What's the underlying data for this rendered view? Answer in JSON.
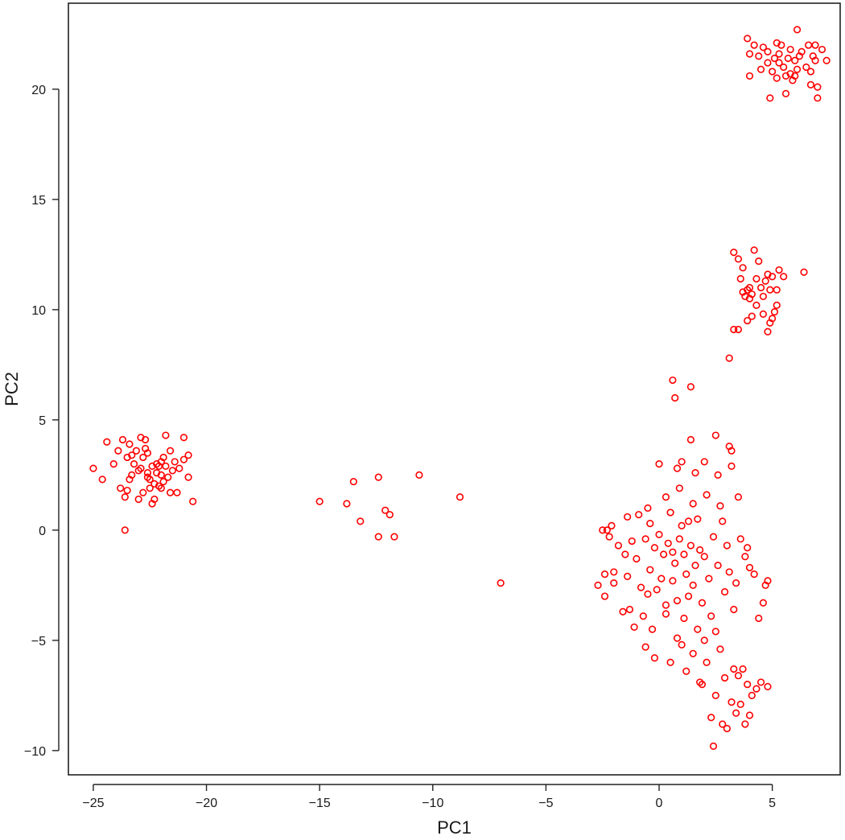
{
  "chart_data": {
    "type": "scatter",
    "title": "",
    "xlabel": "PC1",
    "ylabel": "PC2",
    "xlim": [
      -26.1,
      8.0
    ],
    "ylim": [
      -11.1,
      23.9
    ],
    "x_ticks": [
      -25,
      -20,
      -15,
      -10,
      -5,
      0,
      5
    ],
    "y_ticks": [
      -10,
      -5,
      0,
      5,
      10,
      15,
      20
    ],
    "x_tick_labels": [
      "−25",
      "−20",
      "−15",
      "−10",
      "−5",
      "0",
      "5"
    ],
    "y_tick_labels": [
      "−10",
      "−5",
      "0",
      "5",
      "10",
      "15",
      "20"
    ],
    "marker": "open-circle",
    "marker_color": "#ff0000",
    "grid": false,
    "legend": "none",
    "series": [
      {
        "points": [
          [
            -25.0,
            2.8
          ],
          [
            -24.6,
            2.3
          ],
          [
            -24.4,
            4.0
          ],
          [
            -24.1,
            3.0
          ],
          [
            -23.9,
            3.6
          ],
          [
            -23.8,
            1.9
          ],
          [
            -23.7,
            4.1
          ],
          [
            -23.6,
            1.5
          ],
          [
            -23.5,
            1.8
          ],
          [
            -23.5,
            3.3
          ],
          [
            -23.4,
            2.3
          ],
          [
            -23.4,
            3.9
          ],
          [
            -23.3,
            3.4
          ],
          [
            -23.2,
            3.0
          ],
          [
            -23.1,
            3.6
          ],
          [
            -23.0,
            1.4
          ],
          [
            -22.9,
            2.8
          ],
          [
            -22.9,
            4.2
          ],
          [
            -22.8,
            3.3
          ],
          [
            -22.8,
            1.7
          ],
          [
            -22.7,
            3.7
          ],
          [
            -22.7,
            4.1
          ],
          [
            -22.6,
            2.6
          ],
          [
            -22.6,
            3.5
          ],
          [
            -22.5,
            1.9
          ],
          [
            -22.5,
            2.3
          ],
          [
            -22.4,
            1.2
          ],
          [
            -22.4,
            2.9
          ],
          [
            -22.3,
            1.4
          ],
          [
            -22.3,
            2.1
          ],
          [
            -22.2,
            3.0
          ],
          [
            -22.2,
            2.6
          ],
          [
            -22.1,
            2.9
          ],
          [
            -22.0,
            2.5
          ],
          [
            -22.0,
            1.9
          ],
          [
            -21.9,
            3.3
          ],
          [
            -21.9,
            2.2
          ],
          [
            -21.8,
            2.9
          ],
          [
            -21.8,
            4.3
          ],
          [
            -21.7,
            2.4
          ],
          [
            -21.6,
            1.7
          ],
          [
            -21.6,
            3.6
          ],
          [
            -21.5,
            2.7
          ],
          [
            -21.4,
            3.1
          ],
          [
            -21.3,
            1.7
          ],
          [
            -21.2,
            2.8
          ],
          [
            -21.0,
            3.2
          ],
          [
            -21.0,
            4.2
          ],
          [
            -20.8,
            3.4
          ],
          [
            -20.8,
            2.4
          ],
          [
            -20.6,
            1.3
          ],
          [
            -23.6,
            0.0
          ],
          [
            -22.1,
            2.0
          ],
          [
            -23.0,
            2.7
          ],
          [
            -22.6,
            2.4
          ],
          [
            -23.3,
            2.5
          ],
          [
            -22.0,
            3.1
          ],
          [
            -15.0,
            1.3
          ],
          [
            -13.8,
            1.2
          ],
          [
            -13.5,
            2.2
          ],
          [
            -13.2,
            0.4
          ],
          [
            -12.4,
            -0.3
          ],
          [
            -12.4,
            2.4
          ],
          [
            -12.1,
            0.9
          ],
          [
            -11.9,
            0.7
          ],
          [
            -11.7,
            -0.3
          ],
          [
            -10.6,
            2.5
          ],
          [
            -8.8,
            1.5
          ],
          [
            -7.0,
            -2.4
          ],
          [
            0.6,
            6.8
          ],
          [
            0.7,
            6.0
          ],
          [
            1.4,
            6.5
          ],
          [
            1.4,
            4.1
          ],
          [
            2.5,
            4.3
          ],
          [
            3.1,
            3.8
          ],
          [
            3.2,
            3.6
          ],
          [
            3.1,
            7.8
          ],
          [
            3.3,
            9.1
          ],
          [
            3.5,
            9.1
          ],
          [
            3.9,
            9.5
          ],
          [
            4.1,
            9.7
          ],
          [
            4.8,
            9.0
          ],
          [
            4.9,
            9.4
          ],
          [
            5.0,
            9.6
          ],
          [
            5.1,
            9.9
          ],
          [
            5.2,
            10.2
          ],
          [
            3.3,
            12.6
          ],
          [
            3.5,
            12.3
          ],
          [
            3.6,
            11.4
          ],
          [
            3.7,
            10.8
          ],
          [
            3.8,
            10.6
          ],
          [
            3.9,
            10.9
          ],
          [
            4.0,
            11.0
          ],
          [
            4.1,
            10.7
          ],
          [
            4.2,
            12.7
          ],
          [
            4.3,
            11.4
          ],
          [
            4.4,
            12.2
          ],
          [
            4.5,
            11.0
          ],
          [
            4.6,
            10.6
          ],
          [
            4.7,
            11.3
          ],
          [
            4.8,
            11.6
          ],
          [
            4.9,
            10.9
          ],
          [
            5.0,
            11.5
          ],
          [
            5.2,
            10.9
          ],
          [
            5.3,
            11.8
          ],
          [
            5.5,
            11.5
          ],
          [
            6.4,
            11.7
          ],
          [
            4.3,
            10.2
          ],
          [
            4.6,
            9.8
          ],
          [
            3.7,
            11.9
          ],
          [
            4.0,
            10.5
          ],
          [
            3.9,
            22.3
          ],
          [
            4.0,
            21.6
          ],
          [
            4.0,
            20.6
          ],
          [
            4.2,
            22.0
          ],
          [
            4.4,
            21.5
          ],
          [
            4.5,
            20.9
          ],
          [
            4.6,
            21.9
          ],
          [
            4.8,
            21.2
          ],
          [
            4.8,
            21.7
          ],
          [
            4.9,
            19.6
          ],
          [
            5.0,
            20.8
          ],
          [
            5.1,
            21.4
          ],
          [
            5.2,
            22.1
          ],
          [
            5.2,
            20.5
          ],
          [
            5.3,
            21.6
          ],
          [
            5.4,
            22.0
          ],
          [
            5.5,
            21.0
          ],
          [
            5.6,
            19.8
          ],
          [
            5.6,
            20.6
          ],
          [
            5.7,
            21.4
          ],
          [
            5.8,
            21.8
          ],
          [
            5.8,
            20.7
          ],
          [
            5.9,
            20.4
          ],
          [
            6.0,
            21.3
          ],
          [
            6.1,
            22.7
          ],
          [
            6.1,
            20.9
          ],
          [
            6.2,
            21.5
          ],
          [
            6.3,
            21.7
          ],
          [
            6.5,
            21.0
          ],
          [
            6.6,
            22.0
          ],
          [
            6.7,
            20.8
          ],
          [
            6.8,
            21.5
          ],
          [
            6.9,
            21.3
          ],
          [
            6.9,
            22.0
          ],
          [
            7.0,
            20.1
          ],
          [
            7.0,
            19.6
          ],
          [
            7.2,
            21.8
          ],
          [
            7.4,
            21.3
          ],
          [
            6.7,
            20.2
          ],
          [
            5.3,
            21.2
          ],
          [
            6.0,
            20.6
          ],
          [
            -2.7,
            -2.5
          ],
          [
            -2.5,
            0.0
          ],
          [
            -2.4,
            -2.0
          ],
          [
            -2.4,
            -3.0
          ],
          [
            -2.3,
            0.0
          ],
          [
            -2.2,
            -0.3
          ],
          [
            -2.1,
            0.2
          ],
          [
            -2.0,
            -1.9
          ],
          [
            -2.0,
            -2.4
          ],
          [
            -1.8,
            -0.7
          ],
          [
            -1.6,
            -3.7
          ],
          [
            -1.5,
            -1.1
          ],
          [
            -1.4,
            0.6
          ],
          [
            -1.4,
            -2.1
          ],
          [
            -1.3,
            -3.6
          ],
          [
            -1.2,
            -0.5
          ],
          [
            -1.1,
            -4.4
          ],
          [
            -1.0,
            -1.3
          ],
          [
            -0.9,
            0.7
          ],
          [
            -0.8,
            -2.6
          ],
          [
            -0.7,
            -3.9
          ],
          [
            -0.6,
            -0.4
          ],
          [
            -0.6,
            -5.3
          ],
          [
            -0.5,
            1.0
          ],
          [
            -0.4,
            -1.8
          ],
          [
            -0.3,
            -4.5
          ],
          [
            -0.2,
            -0.8
          ],
          [
            -0.2,
            -5.8
          ],
          [
            0.0,
            3.0
          ],
          [
            0.1,
            -2.2
          ],
          [
            0.3,
            -3.4
          ],
          [
            0.3,
            1.5
          ],
          [
            0.5,
            -6.0
          ],
          [
            0.6,
            -1.0
          ],
          [
            0.8,
            2.8
          ],
          [
            0.8,
            -4.9
          ],
          [
            1.0,
            3.1
          ],
          [
            1.2,
            -6.4
          ],
          [
            1.3,
            0.4
          ],
          [
            1.5,
            -5.6
          ],
          [
            1.6,
            2.6
          ],
          [
            1.8,
            -6.9
          ],
          [
            1.9,
            -7.0
          ],
          [
            2.0,
            3.1
          ],
          [
            2.1,
            -6.0
          ],
          [
            2.3,
            -8.5
          ],
          [
            2.4,
            -9.8
          ],
          [
            2.5,
            -7.5
          ],
          [
            2.6,
            2.5
          ],
          [
            2.8,
            -8.8
          ],
          [
            2.9,
            -6.7
          ],
          [
            3.0,
            -9.0
          ],
          [
            3.2,
            -7.8
          ],
          [
            3.2,
            2.9
          ],
          [
            3.3,
            -6.3
          ],
          [
            3.4,
            -8.3
          ],
          [
            3.5,
            -6.6
          ],
          [
            3.5,
            1.5
          ],
          [
            3.6,
            -7.9
          ],
          [
            3.7,
            -6.3
          ],
          [
            3.8,
            -8.8
          ],
          [
            3.9,
            -7.0
          ],
          [
            4.0,
            -8.4
          ],
          [
            4.1,
            -7.5
          ],
          [
            4.3,
            -7.2
          ],
          [
            4.5,
            -6.9
          ],
          [
            4.8,
            -7.1
          ],
          [
            4.4,
            -4.0
          ],
          [
            4.6,
            -3.3
          ],
          [
            4.7,
            -2.5
          ],
          [
            4.8,
            -2.3
          ],
          [
            4.2,
            -2.0
          ],
          [
            4.0,
            -1.7
          ],
          [
            3.9,
            -0.8
          ],
          [
            3.8,
            -1.2
          ],
          [
            3.6,
            -0.4
          ],
          [
            2.7,
            -5.4
          ],
          [
            1.1,
            -1.1
          ],
          [
            1.4,
            -0.7
          ],
          [
            1.6,
            -1.6
          ],
          [
            0.9,
            -0.4
          ],
          [
            1.2,
            -2.0
          ],
          [
            1.8,
            -0.9
          ],
          [
            0.7,
            -1.5
          ],
          [
            1.5,
            -2.5
          ],
          [
            2.0,
            -1.2
          ],
          [
            1.0,
            0.2
          ],
          [
            0.4,
            -0.6
          ],
          [
            2.2,
            -2.2
          ],
          [
            1.3,
            -3.0
          ],
          [
            0.6,
            -2.3
          ],
          [
            2.4,
            -0.3
          ],
          [
            1.9,
            -3.3
          ],
          [
            0.2,
            -1.1
          ],
          [
            2.6,
            -1.6
          ],
          [
            1.7,
            0.5
          ],
          [
            0.8,
            -3.2
          ],
          [
            2.9,
            -2.8
          ],
          [
            1.1,
            -4.0
          ],
          [
            2.3,
            -3.9
          ],
          [
            0.0,
            -0.2
          ],
          [
            3.0,
            -0.7
          ],
          [
            1.5,
            1.2
          ],
          [
            0.5,
            0.8
          ],
          [
            2.8,
            0.4
          ],
          [
            -0.1,
            -2.7
          ],
          [
            3.3,
            -3.6
          ],
          [
            2.1,
            1.6
          ],
          [
            1.7,
            -4.5
          ],
          [
            0.3,
            -3.8
          ],
          [
            3.1,
            -1.9
          ],
          [
            2.5,
            -4.6
          ],
          [
            -0.4,
            0.3
          ],
          [
            1.0,
            -5.2
          ],
          [
            3.4,
            -2.4
          ],
          [
            2.0,
            -5.0
          ],
          [
            -0.5,
            -2.9
          ],
          [
            0.9,
            1.9
          ],
          [
            2.7,
            1.1
          ]
        ]
      }
    ]
  }
}
